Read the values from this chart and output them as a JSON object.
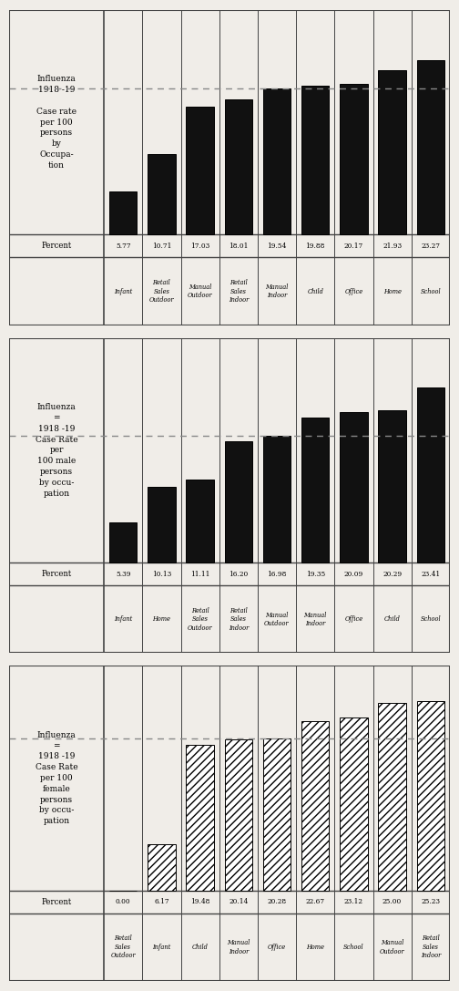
{
  "chart1": {
    "title": "Influenza\n1918 -19\n\nCase rate\nper 100\npersons\nby\nOccupa-\ntion",
    "values": [
      5.77,
      10.71,
      17.03,
      18.01,
      19.54,
      19.88,
      20.17,
      21.93,
      23.27
    ],
    "labels": [
      "Infant",
      "Retail\nSales\nOutdoor",
      "Manual\nOutdoor",
      "Retail\nSales\nIndoor",
      "Manual\nIndoor",
      "Child",
      "Office",
      "Home",
      "School"
    ],
    "percents": [
      "5.77",
      "10.71",
      "17.03",
      "18.01",
      "19.54",
      "19.88",
      "20.17",
      "21.93",
      "23.27"
    ],
    "hatch": null,
    "facecolor": "#111111",
    "dashed_line": 19.54
  },
  "chart2": {
    "title": "Influenza\n=\n1918 -19\nCase Rate\nper\n100 male\npersons\nby occu-\npation",
    "values": [
      5.39,
      10.13,
      11.11,
      16.2,
      16.98,
      19.35,
      20.09,
      20.29,
      23.41
    ],
    "labels": [
      "Infant",
      "Home",
      "Retail\nSales\nOutdoor",
      "Retail\nSales\nIndoor",
      "Manual\nOutdoor",
      "Manual\nIndoor",
      "Office",
      "Child",
      "School"
    ],
    "percents": [
      "5.39",
      "10.13",
      "11.11",
      "16.20",
      "16.98",
      "19.35",
      "20.09",
      "20.29",
      "23.41"
    ],
    "hatch": null,
    "facecolor": "#111111",
    "dashed_line": 16.98
  },
  "chart3": {
    "title": "Influenza\n=\n1918 -19\nCase Rate\nper 100\nfemale\npersons\nby occu-\npation",
    "values": [
      0.0,
      6.17,
      19.48,
      20.14,
      20.28,
      22.67,
      23.12,
      25.0,
      25.23
    ],
    "labels": [
      "Retail\nSales\nOutdoor",
      "Infant",
      "Child",
      "Manual\nIndoor",
      "Office",
      "Home",
      "School",
      "Manual\nOutdoor",
      "Retail\nSales\nIndoor"
    ],
    "percents": [
      "0.00",
      "6.17",
      "19.48",
      "20.14",
      "20.28",
      "22.67",
      "23.12",
      "25.00",
      "25.23"
    ],
    "hatch": "////",
    "facecolor": "white",
    "dashed_line": 20.28
  },
  "bg_color": "#f0ede8",
  "bar_color": "#111111",
  "hatch_color": "#111111",
  "border_color": "#444444",
  "dashed_color": "#888888",
  "percent_label": "Percent"
}
